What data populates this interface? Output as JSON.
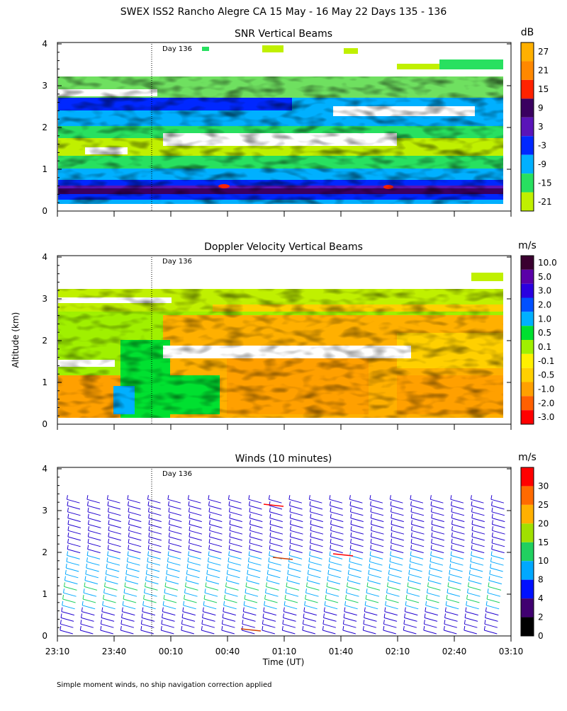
{
  "page": {
    "title": "SWEX ISS2 Rancho Alegre CA  15 May - 16 May 22 Days 135 - 136",
    "ylabel": "Altitude (km)",
    "xlabel": "Time (UT)",
    "footnote": "Simple moment winds, no ship navigation correction applied",
    "day_marker": "Day 136"
  },
  "chart_data": [
    {
      "type": "heatmap",
      "title": "SNR Vertical Beams",
      "colorbar_unit": "dB",
      "colorbar_labels": [
        "27",
        "21",
        "15",
        "9",
        "3",
        "-3",
        "-9",
        "-15",
        "-21"
      ],
      "colorbar_colors": [
        "#ffb000",
        "#ff8800",
        "#ff2200",
        "#3a0060",
        "#5a14b8",
        "#0028ff",
        "#00b0ff",
        "#28e060",
        "#c0f000"
      ],
      "x_ticks": [
        "23:10",
        "23:40",
        "00:10",
        "00:40",
        "01:10",
        "01:40",
        "02:10",
        "02:40",
        "03:10"
      ],
      "ylim": [
        0,
        4
      ],
      "y_ticks": [
        "0",
        "1",
        "2",
        "3",
        "4"
      ]
    },
    {
      "type": "heatmap",
      "title": "Doppler Velocity Vertical Beams",
      "colorbar_unit": "m/s",
      "colorbar_labels": [
        "10.0",
        "5.0",
        "3.0",
        "2.0",
        "1.0",
        "0.5",
        "0.1",
        "-0.1",
        "-0.5",
        "-1.0",
        "-2.0",
        "-3.0"
      ],
      "colorbar_colors": [
        "#3a0030",
        "#5a00a8",
        "#2a00e0",
        "#0050ff",
        "#00b0ff",
        "#00e030",
        "#a0f000",
        "#fff000",
        "#ffd000",
        "#ffa000",
        "#ff6000",
        "#ff0000"
      ],
      "x_ticks": [
        "23:10",
        "23:40",
        "00:10",
        "00:40",
        "01:10",
        "01:40",
        "02:10",
        "02:40",
        "03:10"
      ],
      "ylim": [
        0,
        4
      ],
      "y_ticks": [
        "0",
        "1",
        "2",
        "3",
        "4"
      ]
    },
    {
      "type": "scatter",
      "title": "Winds (10 minutes)",
      "colorbar_unit": "m/s",
      "colorbar_labels": [
        "30",
        "25",
        "20",
        "15",
        "10",
        "8",
        "4",
        "2",
        "0"
      ],
      "colorbar_colors": [
        "#ff0000",
        "#ff6a00",
        "#ffb000",
        "#a0e000",
        "#20d060",
        "#00a8ff",
        "#0010ff",
        "#400070",
        "#000000"
      ],
      "x_ticks": [
        "23:10",
        "23:40",
        "00:10",
        "00:40",
        "01:10",
        "01:40",
        "02:10",
        "02:40",
        "03:10"
      ],
      "ylim": [
        0,
        4
      ],
      "y_ticks": [
        "0",
        "1",
        "2",
        "3",
        "4"
      ]
    }
  ]
}
